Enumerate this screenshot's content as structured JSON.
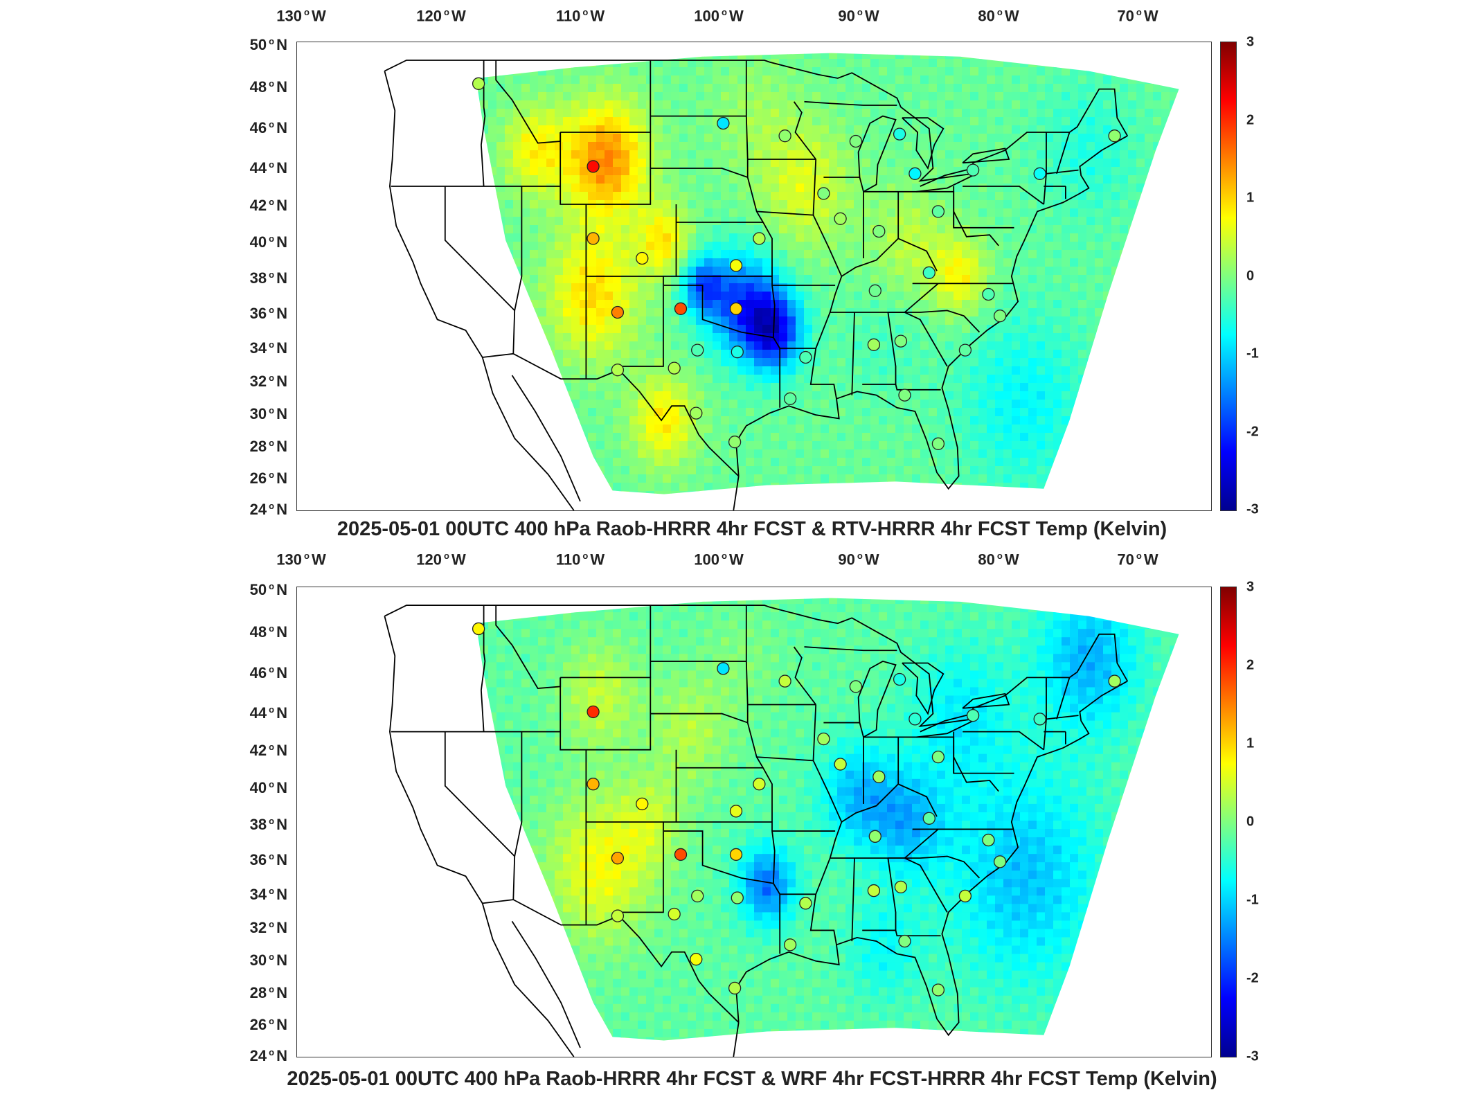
{
  "panels": [
    {
      "title": "2025-05-01 00UTC 400 hPa Raob-HRRR 4hr FCST & RTV-HRRR 4hr FCST Temp (Kelvin)",
      "lon_labels": [
        {
          "deg": "130",
          "hem": "W"
        },
        {
          "deg": "120",
          "hem": "W"
        },
        {
          "deg": "110",
          "hem": "W"
        },
        {
          "deg": "100",
          "hem": "W"
        },
        {
          "deg": "90",
          "hem": "W"
        },
        {
          "deg": "80",
          "hem": "W"
        },
        {
          "deg": "70",
          "hem": "W"
        }
      ],
      "lat_labels": [
        {
          "deg": "50",
          "hem": "N"
        },
        {
          "deg": "48",
          "hem": "N"
        },
        {
          "deg": "46",
          "hem": "N"
        },
        {
          "deg": "44",
          "hem": "N"
        },
        {
          "deg": "42",
          "hem": "N"
        },
        {
          "deg": "40",
          "hem": "N"
        },
        {
          "deg": "38",
          "hem": "N"
        },
        {
          "deg": "36",
          "hem": "N"
        },
        {
          "deg": "34",
          "hem": "N"
        },
        {
          "deg": "32",
          "hem": "N"
        },
        {
          "deg": "30",
          "hem": "N"
        },
        {
          "deg": "28",
          "hem": "N"
        },
        {
          "deg": "26",
          "hem": "N"
        },
        {
          "deg": "24",
          "hem": "N"
        }
      ],
      "colorbar_ticks": [
        "3",
        "2",
        "1",
        "0",
        "-1",
        "-2",
        "-3"
      ]
    },
    {
      "title": "2025-05-01 00UTC 400 hPa Raob-HRRR 4hr FCST & WRF 4hr FCST-HRRR 4hr FCST Temp (Kelvin)",
      "lon_labels": [
        {
          "deg": "130",
          "hem": "W"
        },
        {
          "deg": "120",
          "hem": "W"
        },
        {
          "deg": "110",
          "hem": "W"
        },
        {
          "deg": "100",
          "hem": "W"
        },
        {
          "deg": "90",
          "hem": "W"
        },
        {
          "deg": "80",
          "hem": "W"
        },
        {
          "deg": "70",
          "hem": "W"
        }
      ],
      "lat_labels": [
        {
          "deg": "50",
          "hem": "N"
        },
        {
          "deg": "48",
          "hem": "N"
        },
        {
          "deg": "46",
          "hem": "N"
        },
        {
          "deg": "44",
          "hem": "N"
        },
        {
          "deg": "42",
          "hem": "N"
        },
        {
          "deg": "40",
          "hem": "N"
        },
        {
          "deg": "38",
          "hem": "N"
        },
        {
          "deg": "36",
          "hem": "N"
        },
        {
          "deg": "34",
          "hem": "N"
        },
        {
          "deg": "32",
          "hem": "N"
        },
        {
          "deg": "30",
          "hem": "N"
        },
        {
          "deg": "28",
          "hem": "N"
        },
        {
          "deg": "26",
          "hem": "N"
        },
        {
          "deg": "24",
          "hem": "N"
        }
      ],
      "colorbar_ticks": [
        "3",
        "2",
        "1",
        "0",
        "-1",
        "-2",
        "-3"
      ]
    }
  ],
  "colormap": [
    "#00008f",
    "#0000ff",
    "#0080ff",
    "#00ffff",
    "#80ff80",
    "#ffff00",
    "#ff8000",
    "#ff0000",
    "#800000"
  ],
  "stations": [
    {
      "lon": -117.4,
      "lat": 47.7
    },
    {
      "lon": -98.4,
      "lat": 45.5
    },
    {
      "lon": -93.6,
      "lat": 44.8
    },
    {
      "lon": -88.1,
      "lat": 44.5
    },
    {
      "lon": -84.7,
      "lat": 44.9
    },
    {
      "lon": -108.5,
      "lat": 43.1
    },
    {
      "lon": -83.5,
      "lat": 42.7
    },
    {
      "lon": -79.0,
      "lat": 42.9
    },
    {
      "lon": -73.8,
      "lat": 42.7
    },
    {
      "lon": -68.0,
      "lat": 44.8
    },
    {
      "lon": -90.6,
      "lat": 41.6
    },
    {
      "lon": -89.3,
      "lat": 40.2
    },
    {
      "lon": -86.3,
      "lat": 39.5
    },
    {
      "lon": -81.7,
      "lat": 40.6
    },
    {
      "lon": -108.5,
      "lat": 39.1
    },
    {
      "lon": -95.6,
      "lat": 39.1
    },
    {
      "lon": -104.7,
      "lat": 38.0
    },
    {
      "lon": -97.4,
      "lat": 37.6
    },
    {
      "lon": -82.4,
      "lat": 37.2
    },
    {
      "lon": -86.6,
      "lat": 36.2
    },
    {
      "lon": -77.8,
      "lat": 36.0
    },
    {
      "lon": -106.6,
      "lat": 35.0
    },
    {
      "lon": -101.7,
      "lat": 35.2
    },
    {
      "lon": -97.4,
      "lat": 35.2
    },
    {
      "lon": -76.9,
      "lat": 34.8
    },
    {
      "lon": -100.4,
      "lat": 32.9
    },
    {
      "lon": -97.3,
      "lat": 32.8
    },
    {
      "lon": -92.0,
      "lat": 32.5
    },
    {
      "lon": -86.7,
      "lat": 33.2
    },
    {
      "lon": -84.6,
      "lat": 33.4
    },
    {
      "lon": -79.6,
      "lat": 32.9
    },
    {
      "lon": -106.6,
      "lat": 31.8
    },
    {
      "lon": -102.2,
      "lat": 31.9
    },
    {
      "lon": -100.5,
      "lat": 29.4
    },
    {
      "lon": -97.5,
      "lat": 27.8
    },
    {
      "lon": -93.2,
      "lat": 30.2
    },
    {
      "lon": -84.3,
      "lat": 30.4
    },
    {
      "lon": -81.7,
      "lat": 27.7
    }
  ],
  "station_values": [
    [
      0.3,
      -0.9,
      0.1,
      0.0,
      -0.6,
      2.2,
      -0.8,
      -0.3,
      -0.7,
      0.1,
      0.0,
      0.2,
      0.0,
      -0.2,
      1.2,
      0.3,
      0.8,
      0.7,
      -0.4,
      -0.1,
      -0.3,
      1.5,
      1.8,
      1.0,
      0.0,
      -0.3,
      -0.6,
      -0.3,
      0.2,
      0.0,
      -0.2,
      0.3,
      0.3,
      0.2,
      0.1,
      -0.2,
      0.0,
      0.0
    ],
    [
      0.8,
      -0.9,
      0.4,
      0.0,
      -0.6,
      2.0,
      -0.5,
      -0.3,
      -0.4,
      0.2,
      0.2,
      0.4,
      0.2,
      0.0,
      1.2,
      0.5,
      0.8,
      0.6,
      -0.2,
      0.1,
      0.0,
      1.3,
      1.8,
      1.0,
      0.0,
      0.2,
      0.1,
      0.3,
      0.4,
      0.3,
      0.4,
      0.4,
      0.5,
      0.7,
      0.3,
      0.2,
      0.0,
      0.1
    ]
  ]
}
